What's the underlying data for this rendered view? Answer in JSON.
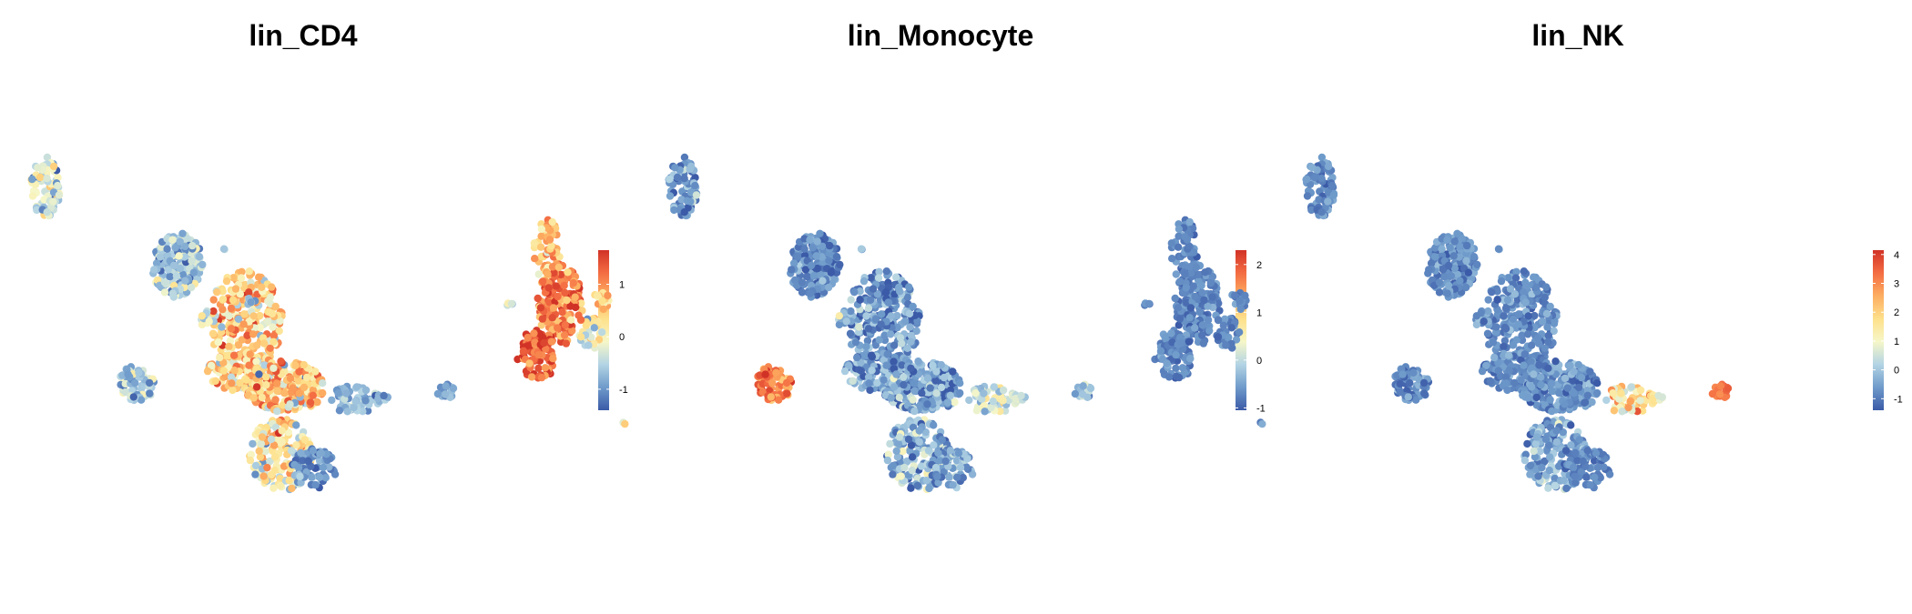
{
  "figure": {
    "colorscale": [
      "#3b5aa7",
      "#6f9bcb",
      "#b3d4e4",
      "#f6f7c8",
      "#fee08b",
      "#fdae61",
      "#f46d43",
      "#d13226"
    ]
  },
  "chart_data": [
    {
      "type": "scatter",
      "title": "lin_CD4",
      "colorbar": {
        "min": -1.4,
        "max": 1.65,
        "ticks": [
          -1,
          0,
          1
        ],
        "tick_labels": [
          "-1",
          "0",
          "1"
        ]
      },
      "grid": false,
      "axes_visible": false,
      "clusters": [
        {
          "name": "",
          "cx": 95,
          "cy": 163,
          "rx": 28,
          "ry": 36,
          "n": 190,
          "mean": -0.6,
          "sd": 0.35
        },
        {
          "name": "",
          "cx": 20,
          "cy": 103,
          "rx": 40,
          "ry": 55,
          "n": 240,
          "mean": 0.45,
          "sd": 0.55
        },
        {
          "name": "",
          "cx": 24,
          "cy": 46,
          "rx": 38,
          "ry": 22,
          "n": 140,
          "mean": 0.35,
          "sd": 0.55
        },
        {
          "name": "",
          "cx": -23,
          "cy": 30,
          "rx": 45,
          "ry": 28,
          "n": 220,
          "mean": 0.5,
          "sd": 0.55
        },
        {
          "name": "",
          "cx": -18,
          "cy": -45,
          "rx": 35,
          "ry": 40,
          "n": 160,
          "mean": 0.2,
          "sd": 0.6
        },
        {
          "name": "",
          "cx": -100,
          "cy": 15,
          "rx": 28,
          "ry": 16,
          "n": 55,
          "mean": -0.8,
          "sd": 0.25
        },
        {
          "name": "",
          "cx": -130,
          "cy": 18,
          "rx": 8,
          "ry": 4,
          "n": 7,
          "mean": -0.9,
          "sd": 0.2
        },
        {
          "name": "",
          "cx": 62,
          "cy": 103,
          "rx": 7,
          "ry": 10,
          "n": 12,
          "mean": -0.5,
          "sd": 0.3
        },
        {
          "name": "",
          "cx": 14,
          "cy": 122,
          "rx": 6,
          "ry": 6,
          "n": 6,
          "mean": -0.7,
          "sd": 0.3
        },
        {
          "name": "",
          "cx": 42,
          "cy": 180,
          "rx": 3,
          "ry": 3,
          "n": 2,
          "mean": -0.6,
          "sd": 0.2
        },
        {
          "name": "",
          "cx": -55,
          "cy": -60,
          "rx": 25,
          "ry": 22,
          "n": 70,
          "mean": -1.0,
          "sd": 0.2
        },
        {
          "name": "",
          "cx": -200,
          "cy": 25,
          "rx": 10,
          "ry": 8,
          "n": 15,
          "mean": -0.9,
          "sd": 0.2
        },
        {
          "name": "",
          "cx": 140,
          "cy": 33,
          "rx": 20,
          "ry": 20,
          "n": 60,
          "mean": -0.5,
          "sd": 0.4
        },
        {
          "name": "",
          "cx": 305,
          "cy": -10,
          "rx": 3,
          "ry": 3,
          "n": 2,
          "mean": -0.7,
          "sd": 0.2
        },
        {
          "name": "",
          "cx": 340,
          "cy": 90,
          "rx": 14,
          "ry": 18,
          "n": 30,
          "mean": -0.9,
          "sd": 0.25
        },
        {
          "name": "",
          "cx": 330,
          "cy": 125,
          "rx": 9,
          "ry": 12,
          "n": 18,
          "mean": -0.9,
          "sd": 0.25
        },
        {
          "name": "",
          "cx": 430,
          "cy": 120,
          "rx": 4,
          "ry": 3,
          "n": 4,
          "mean": -0.6,
          "sd": 0.2
        },
        {
          "name": "",
          "cx": 390,
          "cy": 180,
          "rx": 15,
          "ry": 35,
          "n": 55,
          "mean": -0.95,
          "sd": 0.25
        },
        {
          "name": "",
          "cx": 375,
          "cy": 120,
          "rx": 25,
          "ry": 45,
          "n": 160,
          "mean": -0.75,
          "sd": 0.3
        },
        {
          "name": "",
          "cx": 400,
          "cy": 65,
          "rx": 22,
          "ry": 28,
          "n": 90,
          "mean": -0.6,
          "sd": 0.35
        },
        {
          "name": "",
          "cx": 240,
          "cy": 250,
          "rx": 16,
          "ry": 34,
          "n": 75,
          "mean": -0.3,
          "sd": 0.55
        }
      ]
    },
    {
      "type": "scatter",
      "title": "lin_Monocyte",
      "colorbar": {
        "min": -1.05,
        "max": 2.3,
        "ticks": [
          -1,
          0,
          1,
          2
        ],
        "tick_labels": [
          "-1",
          "0",
          "1",
          "2"
        ]
      },
      "grid": false,
      "axes_visible": false,
      "clusters": [
        {
          "name": "",
          "cx": 95,
          "cy": 163,
          "rx": 28,
          "ry": 36,
          "n": 190,
          "mean": -0.7,
          "sd": 0.25
        },
        {
          "name": "",
          "cx": 20,
          "cy": 103,
          "rx": 40,
          "ry": 55,
          "n": 240,
          "mean": -0.6,
          "sd": 0.35
        },
        {
          "name": "",
          "cx": 24,
          "cy": 46,
          "rx": 38,
          "ry": 22,
          "n": 140,
          "mean": -0.55,
          "sd": 0.35
        },
        {
          "name": "",
          "cx": -23,
          "cy": 30,
          "rx": 45,
          "ry": 28,
          "n": 220,
          "mean": -0.5,
          "sd": 0.35
        },
        {
          "name": "",
          "cx": -18,
          "cy": -45,
          "rx": 35,
          "ry": 40,
          "n": 160,
          "mean": -0.3,
          "sd": 0.45
        },
        {
          "name": "",
          "cx": -100,
          "cy": 15,
          "rx": 28,
          "ry": 16,
          "n": 55,
          "mean": 0.1,
          "sd": 0.4
        },
        {
          "name": "",
          "cx": -130,
          "cy": 18,
          "rx": 8,
          "ry": 4,
          "n": 7,
          "mean": 0.2,
          "sd": 0.3
        },
        {
          "name": "",
          "cx": 62,
          "cy": 103,
          "rx": 7,
          "ry": 10,
          "n": 12,
          "mean": -0.5,
          "sd": 0.3
        },
        {
          "name": "",
          "cx": 14,
          "cy": 122,
          "rx": 6,
          "ry": 6,
          "n": 6,
          "mean": -0.6,
          "sd": 0.3
        },
        {
          "name": "",
          "cx": 42,
          "cy": 180,
          "rx": 3,
          "ry": 3,
          "n": 2,
          "mean": -0.6,
          "sd": 0.2
        },
        {
          "name": "",
          "cx": -55,
          "cy": -60,
          "rx": 25,
          "ry": 22,
          "n": 70,
          "mean": -0.5,
          "sd": 0.3
        },
        {
          "name": "",
          "cx": -200,
          "cy": 25,
          "rx": 10,
          "ry": 8,
          "n": 15,
          "mean": -0.2,
          "sd": 0.3
        },
        {
          "name": "",
          "cx": 140,
          "cy": 33,
          "rx": 20,
          "ry": 20,
          "n": 60,
          "mean": 1.7,
          "sd": 0.35
        },
        {
          "name": "",
          "cx": 305,
          "cy": -10,
          "rx": 3,
          "ry": 3,
          "n": 2,
          "mean": 0.5,
          "sd": 0.3
        },
        {
          "name": "",
          "cx": 340,
          "cy": 90,
          "rx": 14,
          "ry": 18,
          "n": 30,
          "mean": 0.6,
          "sd": 0.5
        },
        {
          "name": "",
          "cx": 330,
          "cy": 125,
          "rx": 9,
          "ry": 12,
          "n": 18,
          "mean": 0.9,
          "sd": 0.4
        },
        {
          "name": "",
          "cx": 430,
          "cy": 120,
          "rx": 4,
          "ry": 3,
          "n": 4,
          "mean": 0.3,
          "sd": 0.3
        },
        {
          "name": "",
          "cx": 390,
          "cy": 180,
          "rx": 15,
          "ry": 35,
          "n": 55,
          "mean": 1.2,
          "sd": 0.35
        },
        {
          "name": "",
          "cx": 375,
          "cy": 120,
          "rx": 25,
          "ry": 45,
          "n": 160,
          "mean": 1.65,
          "sd": 0.4
        },
        {
          "name": "",
          "cx": 400,
          "cy": 65,
          "rx": 22,
          "ry": 28,
          "n": 90,
          "mean": 1.9,
          "sd": 0.35
        },
        {
          "name": "",
          "cx": 240,
          "cy": 250,
          "rx": 16,
          "ry": 34,
          "n": 75,
          "mean": -0.6,
          "sd": 0.3
        }
      ]
    },
    {
      "type": "scatter",
      "title": "lin_NK",
      "colorbar": {
        "min": -1.4,
        "max": 4.15,
        "ticks": [
          -1,
          0,
          1,
          2,
          3,
          4
        ],
        "tick_labels": [
          "-1",
          "0",
          "1",
          "2",
          "3",
          "4"
        ]
      },
      "grid": false,
      "axes_visible": false,
      "clusters": [
        {
          "name": "",
          "cx": 95,
          "cy": 163,
          "rx": 28,
          "ry": 36,
          "n": 190,
          "mean": -0.75,
          "sd": 0.3
        },
        {
          "name": "",
          "cx": 20,
          "cy": 103,
          "rx": 40,
          "ry": 55,
          "n": 240,
          "mean": -0.8,
          "sd": 0.3
        },
        {
          "name": "",
          "cx": 24,
          "cy": 46,
          "rx": 38,
          "ry": 22,
          "n": 140,
          "mean": -0.8,
          "sd": 0.3
        },
        {
          "name": "",
          "cx": -23,
          "cy": 30,
          "rx": 45,
          "ry": 28,
          "n": 220,
          "mean": -0.7,
          "sd": 0.35
        },
        {
          "name": "",
          "cx": -18,
          "cy": -45,
          "rx": 35,
          "ry": 40,
          "n": 160,
          "mean": -0.4,
          "sd": 0.5
        },
        {
          "name": "",
          "cx": -100,
          "cy": 15,
          "rx": 28,
          "ry": 16,
          "n": 55,
          "mean": 1.5,
          "sd": 0.8
        },
        {
          "name": "",
          "cx": -130,
          "cy": 18,
          "rx": 8,
          "ry": 4,
          "n": 7,
          "mean": 1.0,
          "sd": 0.6
        },
        {
          "name": "",
          "cx": 62,
          "cy": 103,
          "rx": 7,
          "ry": 10,
          "n": 12,
          "mean": -0.6,
          "sd": 0.3
        },
        {
          "name": "",
          "cx": 14,
          "cy": 122,
          "rx": 6,
          "ry": 6,
          "n": 6,
          "mean": -0.7,
          "sd": 0.3
        },
        {
          "name": "",
          "cx": 42,
          "cy": 180,
          "rx": 3,
          "ry": 3,
          "n": 2,
          "mean": -0.6,
          "sd": 0.2
        },
        {
          "name": "",
          "cx": -55,
          "cy": -60,
          "rx": 25,
          "ry": 22,
          "n": 70,
          "mean": -0.9,
          "sd": 0.25
        },
        {
          "name": "",
          "cx": -200,
          "cy": 25,
          "rx": 10,
          "ry": 8,
          "n": 15,
          "mean": 3.4,
          "sd": 0.4
        },
        {
          "name": "",
          "cx": 140,
          "cy": 33,
          "rx": 20,
          "ry": 20,
          "n": 60,
          "mean": -0.8,
          "sd": 0.3
        },
        {
          "name": "",
          "cx": 305,
          "cy": -10,
          "rx": 3,
          "ry": 3,
          "n": 2,
          "mean": -0.8,
          "sd": 0.2
        },
        {
          "name": "",
          "cx": 340,
          "cy": 90,
          "rx": 14,
          "ry": 18,
          "n": 30,
          "mean": -0.9,
          "sd": 0.25
        },
        {
          "name": "",
          "cx": 330,
          "cy": 125,
          "rx": 9,
          "ry": 12,
          "n": 18,
          "mean": -0.9,
          "sd": 0.25
        },
        {
          "name": "",
          "cx": 430,
          "cy": 120,
          "rx": 4,
          "ry": 3,
          "n": 4,
          "mean": -0.8,
          "sd": 0.2
        },
        {
          "name": "",
          "cx": 390,
          "cy": 180,
          "rx": 15,
          "ry": 35,
          "n": 55,
          "mean": -0.85,
          "sd": 0.25
        },
        {
          "name": "",
          "cx": 375,
          "cy": 120,
          "rx": 25,
          "ry": 45,
          "n": 160,
          "mean": -0.85,
          "sd": 0.25
        },
        {
          "name": "",
          "cx": 400,
          "cy": 65,
          "rx": 22,
          "ry": 28,
          "n": 90,
          "mean": -0.85,
          "sd": 0.25
        },
        {
          "name": "",
          "cx": 240,
          "cy": 250,
          "rx": 16,
          "ry": 34,
          "n": 75,
          "mean": -0.75,
          "sd": 0.3
        }
      ]
    }
  ]
}
